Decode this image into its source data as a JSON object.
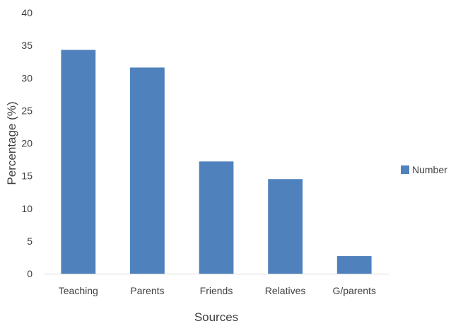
{
  "chart_data": {
    "type": "bar",
    "categories": [
      "Teaching",
      "Parents",
      "Friends",
      "Relatives",
      "G/parents"
    ],
    "series": [
      {
        "name": "Number",
        "values": [
          34.3,
          31.6,
          17.2,
          14.5,
          2.7
        ],
        "color": "#4F81BD"
      }
    ],
    "title": "",
    "xlabel": "Sources",
    "ylabel": "Percentage (%)",
    "ylim": [
      0,
      40
    ],
    "yticks": [
      0,
      5,
      10,
      15,
      20,
      25,
      30,
      35,
      40
    ],
    "grid": false,
    "legend_position": "right"
  }
}
